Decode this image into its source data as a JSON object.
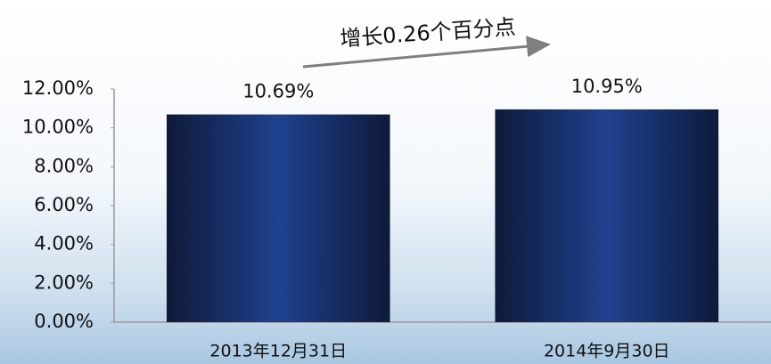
{
  "chart_data": {
    "type": "bar",
    "categories": [
      "2013年12月31日",
      "2014年9月30日"
    ],
    "values": [
      10.69,
      10.95
    ],
    "value_labels": [
      "10.69%",
      "10.95%"
    ],
    "color": "#1f418f",
    "ylim": [
      0,
      12
    ],
    "yticks": [
      {
        "value": 0,
        "label": "0.00%"
      },
      {
        "value": 2,
        "label": "2.00%"
      },
      {
        "value": 4,
        "label": "4.00%"
      },
      {
        "value": 6,
        "label": "6.00%"
      },
      {
        "value": 8,
        "label": "8.00%"
      },
      {
        "value": 10,
        "label": "10.00%"
      },
      {
        "value": 12,
        "label": "12.00%"
      }
    ],
    "annotation": "增长0.26个百分点"
  }
}
